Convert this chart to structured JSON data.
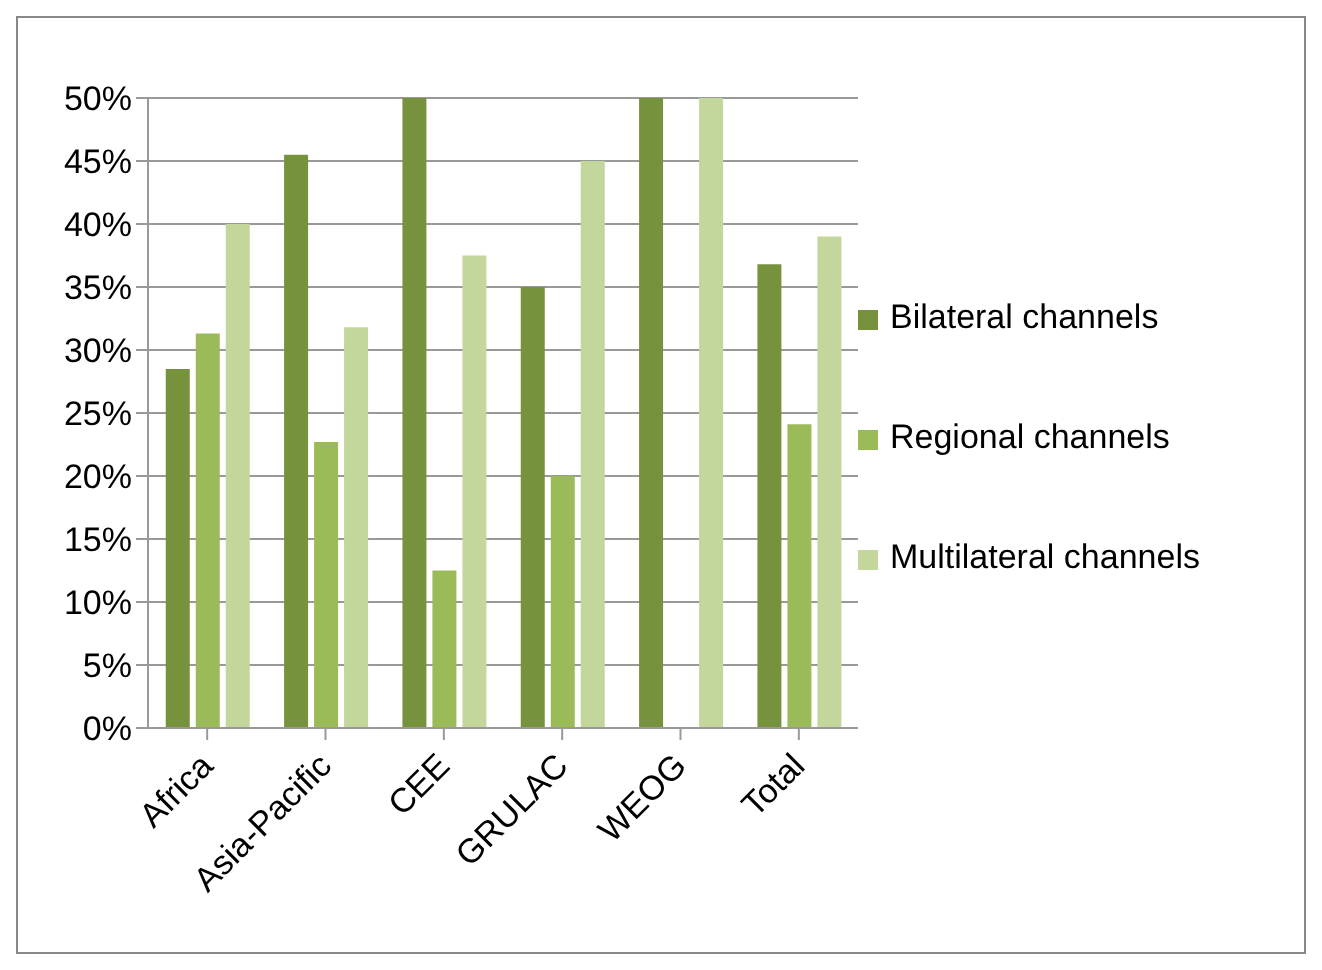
{
  "chart_data": {
    "type": "bar",
    "categories": [
      "Africa",
      "Asia-Pacific",
      "CEE",
      "GRULAC",
      "WEOG",
      "Total"
    ],
    "series": [
      {
        "name": "Bilateral channels",
        "color": "#76923c",
        "values": [
          28.5,
          45.5,
          50,
          35,
          50,
          36.8
        ]
      },
      {
        "name": "Regional channels",
        "color": "#9bbb59",
        "values": [
          31.3,
          22.7,
          12.5,
          20,
          0,
          24.1
        ]
      },
      {
        "name": "Multilateral channels",
        "color": "#c3d69b",
        "values": [
          40,
          31.8,
          37.5,
          45,
          50,
          39
        ]
      }
    ],
    "ylim": [
      0,
      50
    ],
    "yticks": [
      {
        "value": 0,
        "label": "0%"
      },
      {
        "value": 5,
        "label": "5%"
      },
      {
        "value": 10,
        "label": "10%"
      },
      {
        "value": 15,
        "label": "15%"
      },
      {
        "value": 20,
        "label": "20%"
      },
      {
        "value": 25,
        "label": "25%"
      },
      {
        "value": 30,
        "label": "30%"
      },
      {
        "value": 35,
        "label": "35%"
      },
      {
        "value": 40,
        "label": "40%"
      },
      {
        "value": 45,
        "label": "45%"
      },
      {
        "value": 50,
        "label": "50%"
      }
    ],
    "grid": "y",
    "legend": "right"
  }
}
